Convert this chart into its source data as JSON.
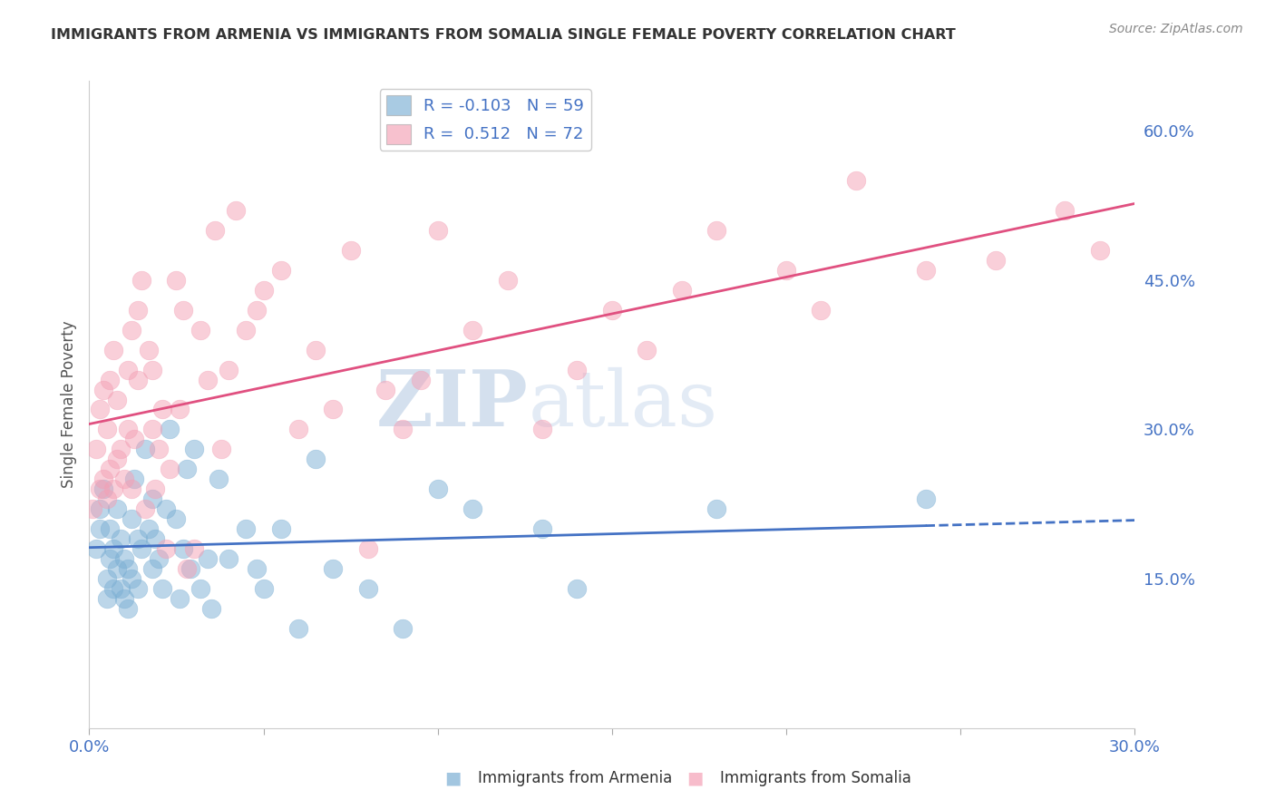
{
  "title": "IMMIGRANTS FROM ARMENIA VS IMMIGRANTS FROM SOMALIA SINGLE FEMALE POVERTY CORRELATION CHART",
  "source": "Source: ZipAtlas.com",
  "ylabel": "Single Female Poverty",
  "xlim": [
    0.0,
    0.3
  ],
  "ylim": [
    0.0,
    0.65
  ],
  "armenia_color": "#7bafd4",
  "somalia_color": "#f4a0b5",
  "armenia_line_color": "#4472c4",
  "somalia_line_color": "#e05080",
  "armenia_R": -0.103,
  "armenia_N": 59,
  "somalia_R": 0.512,
  "somalia_N": 72,
  "legend_armenia_label": "Immigrants from Armenia",
  "legend_somalia_label": "Immigrants from Somalia",
  "watermark_zip": "ZIP",
  "watermark_atlas": "atlas",
  "background_color": "#ffffff",
  "grid_color": "#dddddd",
  "axis_label_color": "#4472c4",
  "title_color": "#333333",
  "armenia_x": [
    0.002,
    0.003,
    0.003,
    0.004,
    0.005,
    0.005,
    0.006,
    0.006,
    0.007,
    0.007,
    0.008,
    0.008,
    0.009,
    0.009,
    0.01,
    0.01,
    0.011,
    0.011,
    0.012,
    0.012,
    0.013,
    0.014,
    0.014,
    0.015,
    0.016,
    0.017,
    0.018,
    0.018,
    0.019,
    0.02,
    0.021,
    0.022,
    0.023,
    0.025,
    0.026,
    0.027,
    0.028,
    0.029,
    0.03,
    0.032,
    0.034,
    0.035,
    0.037,
    0.04,
    0.045,
    0.048,
    0.05,
    0.055,
    0.06,
    0.065,
    0.07,
    0.08,
    0.09,
    0.1,
    0.11,
    0.13,
    0.14,
    0.18,
    0.24
  ],
  "armenia_y": [
    0.18,
    0.22,
    0.2,
    0.24,
    0.15,
    0.13,
    0.17,
    0.2,
    0.14,
    0.18,
    0.16,
    0.22,
    0.14,
    0.19,
    0.13,
    0.17,
    0.12,
    0.16,
    0.15,
    0.21,
    0.25,
    0.19,
    0.14,
    0.18,
    0.28,
    0.2,
    0.16,
    0.23,
    0.19,
    0.17,
    0.14,
    0.22,
    0.3,
    0.21,
    0.13,
    0.18,
    0.26,
    0.16,
    0.28,
    0.14,
    0.17,
    0.12,
    0.25,
    0.17,
    0.2,
    0.16,
    0.14,
    0.2,
    0.1,
    0.27,
    0.16,
    0.14,
    0.1,
    0.24,
    0.22,
    0.2,
    0.14,
    0.22,
    0.23
  ],
  "somalia_x": [
    0.001,
    0.002,
    0.003,
    0.003,
    0.004,
    0.004,
    0.005,
    0.005,
    0.006,
    0.006,
    0.007,
    0.007,
    0.008,
    0.008,
    0.009,
    0.01,
    0.011,
    0.011,
    0.012,
    0.012,
    0.013,
    0.014,
    0.014,
    0.015,
    0.016,
    0.017,
    0.018,
    0.018,
    0.019,
    0.02,
    0.021,
    0.022,
    0.023,
    0.025,
    0.026,
    0.027,
    0.028,
    0.03,
    0.032,
    0.034,
    0.036,
    0.038,
    0.04,
    0.042,
    0.045,
    0.048,
    0.05,
    0.055,
    0.06,
    0.065,
    0.07,
    0.075,
    0.08,
    0.085,
    0.09,
    0.095,
    0.1,
    0.11,
    0.12,
    0.13,
    0.14,
    0.15,
    0.16,
    0.17,
    0.18,
    0.2,
    0.21,
    0.22,
    0.24,
    0.26,
    0.28,
    0.29
  ],
  "somalia_y": [
    0.22,
    0.28,
    0.24,
    0.32,
    0.25,
    0.34,
    0.23,
    0.3,
    0.26,
    0.35,
    0.24,
    0.38,
    0.27,
    0.33,
    0.28,
    0.25,
    0.3,
    0.36,
    0.24,
    0.4,
    0.29,
    0.42,
    0.35,
    0.45,
    0.22,
    0.38,
    0.3,
    0.36,
    0.24,
    0.28,
    0.32,
    0.18,
    0.26,
    0.45,
    0.32,
    0.42,
    0.16,
    0.18,
    0.4,
    0.35,
    0.5,
    0.28,
    0.36,
    0.52,
    0.4,
    0.42,
    0.44,
    0.46,
    0.3,
    0.38,
    0.32,
    0.48,
    0.18,
    0.34,
    0.3,
    0.35,
    0.5,
    0.4,
    0.45,
    0.3,
    0.36,
    0.42,
    0.38,
    0.44,
    0.5,
    0.46,
    0.42,
    0.55,
    0.46,
    0.47,
    0.52,
    0.48
  ]
}
